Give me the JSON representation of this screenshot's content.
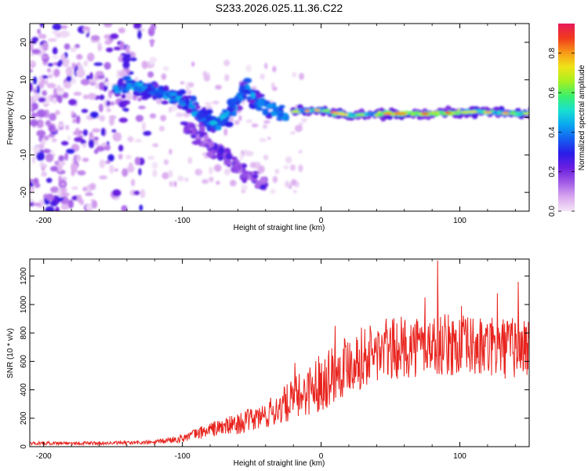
{
  "title": "S233.2026.025.11.36.C22",
  "chart_data": [
    {
      "type": "heatmap",
      "name": "spectrogram",
      "xlabel": "Height of straight line (km)",
      "ylabel": "Frequency (Hz)",
      "xlim": [
        -210,
        150
      ],
      "ylim": [
        -25,
        25
      ],
      "xticks": [
        -200,
        -100,
        0,
        100
      ],
      "yticks": [
        -20,
        -10,
        0,
        10,
        20
      ],
      "colorbar": {
        "label": "Normalized spectral amplitude",
        "range": [
          0.0,
          0.95
        ],
        "ticks": [
          0.0,
          0.2,
          0.4,
          0.6,
          0.8
        ],
        "colors": [
          "#f4e6f7",
          "#d9a7ef",
          "#a05ae6",
          "#6a1fe0",
          "#2a1ce8",
          "#1560f0",
          "#0aa8f0",
          "#18e0d0",
          "#3df06a",
          "#a8f020",
          "#f0e418",
          "#f89818",
          "#f03a1c",
          "#e81a5a"
        ]
      },
      "features": [
        {
          "name": "scattered noise",
          "x_range": [
            -210,
            -120
          ],
          "y_range": [
            -25,
            25
          ]
        },
        {
          "name": "upper branch",
          "points": [
            [
              -150,
              7
            ],
            [
              -135,
              9
            ],
            [
              -120,
              7
            ],
            [
              -105,
              5
            ],
            [
              -95,
              3
            ],
            [
              -85,
              0
            ],
            [
              -75,
              -2
            ],
            [
              -65,
              1
            ],
            [
              -55,
              8
            ],
            [
              -45,
              4
            ],
            [
              -35,
              2
            ],
            [
              -25,
              0
            ]
          ]
        },
        {
          "name": "lower branch",
          "points": [
            [
              -100,
              -2
            ],
            [
              -85,
              -6
            ],
            [
              -70,
              -10
            ],
            [
              -60,
              -13
            ],
            [
              -50,
              -16
            ],
            [
              -40,
              -18
            ]
          ]
        },
        {
          "name": "main line",
          "points": [
            [
              -20,
              1.5
            ],
            [
              0,
              2
            ],
            [
              20,
              0.5
            ],
            [
              50,
              1
            ],
            [
              80,
              1
            ],
            [
              110,
              1.5
            ],
            [
              140,
              1
            ]
          ]
        }
      ]
    },
    {
      "type": "line",
      "name": "snr",
      "xlabel": "Height of straight line (km)",
      "ylabel": "SNR (10 * v/v)",
      "xlim": [
        -210,
        150
      ],
      "ylim": [
        0,
        1320
      ],
      "xticks": [
        -200,
        -100,
        0,
        100
      ],
      "yticks": [
        0,
        200,
        400,
        600,
        800,
        1000,
        1200
      ],
      "color": "#e8231d",
      "envelope": {
        "x": [
          -210,
          -150,
          -120,
          -100,
          -80,
          -60,
          -40,
          -20,
          0,
          20,
          40,
          60,
          80,
          100,
          120,
          150
        ],
        "y": [
          25,
          25,
          30,
          60,
          120,
          160,
          220,
          330,
          460,
          600,
          660,
          700,
          720,
          710,
          690,
          700
        ]
      },
      "noise_amplitude": 220,
      "peaks": [
        {
          "x": -19,
          "y": 590
        },
        {
          "x": 10,
          "y": 850
        },
        {
          "x": 47,
          "y": 900
        },
        {
          "x": 75,
          "y": 1050
        },
        {
          "x": 84,
          "y": 1310
        },
        {
          "x": 101,
          "y": 990
        },
        {
          "x": 127,
          "y": 1080
        },
        {
          "x": 142,
          "y": 1160
        }
      ]
    }
  ]
}
